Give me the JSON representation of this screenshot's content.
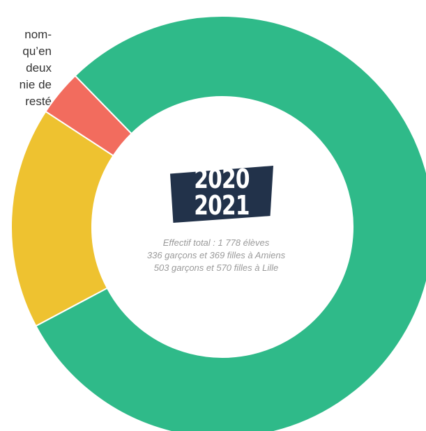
{
  "background_text": [
    "nom-",
    "qu’en",
    "deux",
    "nie de",
    "resté"
  ],
  "chart_data": {
    "type": "pie",
    "donut": true,
    "slices": [
      {
        "label": "",
        "value": 79.5,
        "color": "#2fba89"
      },
      {
        "label": "",
        "value": 17.0,
        "color": "#eec230"
      },
      {
        "label": "",
        "value": 3.5,
        "color": "#f26c5e"
      }
    ],
    "center": {
      "year_line1": "2020",
      "year_line2": "2021",
      "badge_color": "#22324a"
    },
    "caption": [
      "Effectif total : 1 778 élèves",
      "336 garçons et 369 filles à Amiens",
      "503 garçons et 570 filles à Lille"
    ]
  }
}
